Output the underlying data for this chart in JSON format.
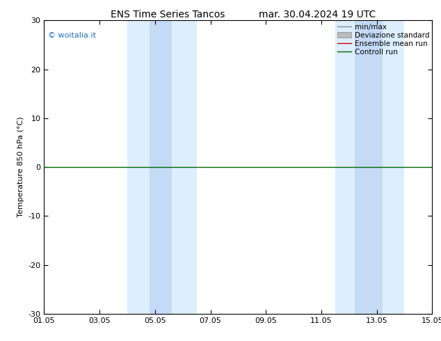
{
  "title_left": "ENS Time Series Tancos",
  "title_right": "mar. 30.04.2024 19 UTC",
  "ylabel": "Temperature 850 hPa (°C)",
  "ylim": [
    -30,
    30
  ],
  "yticks": [
    -30,
    -20,
    -10,
    0,
    10,
    20,
    30
  ],
  "xtick_labels": [
    "01.05",
    "03.05",
    "05.05",
    "07.05",
    "09.05",
    "11.05",
    "13.05",
    "15.05"
  ],
  "xtick_positions": [
    0,
    2,
    4,
    6,
    8,
    10,
    12,
    14
  ],
  "xmin": 0,
  "xmax": 14,
  "band1_outer": [
    3.0,
    5.5
  ],
  "band1_inner": [
    3.8,
    4.6
  ],
  "band2_outer": [
    10.5,
    13.0
  ],
  "band2_inner": [
    11.2,
    12.2
  ],
  "band_outer_color": "#ddeeff",
  "band_inner_color": "#c5daf5",
  "watermark": "© woitalia.it",
  "watermark_color": "#1a6eca",
  "control_run_color": "#006600",
  "ensemble_mean_color": "#cc0000",
  "minmax_color": "#888888",
  "std_color": "#bbbbbb",
  "legend_labels": [
    "min/max",
    "Deviazione standard",
    "Ensemble mean run",
    "Controll run"
  ],
  "bg_color": "#ffffff",
  "spine_color": "#000000",
  "title_fontsize": 10,
  "tick_fontsize": 8,
  "ylabel_fontsize": 8,
  "legend_fontsize": 7.5,
  "watermark_fontsize": 8
}
